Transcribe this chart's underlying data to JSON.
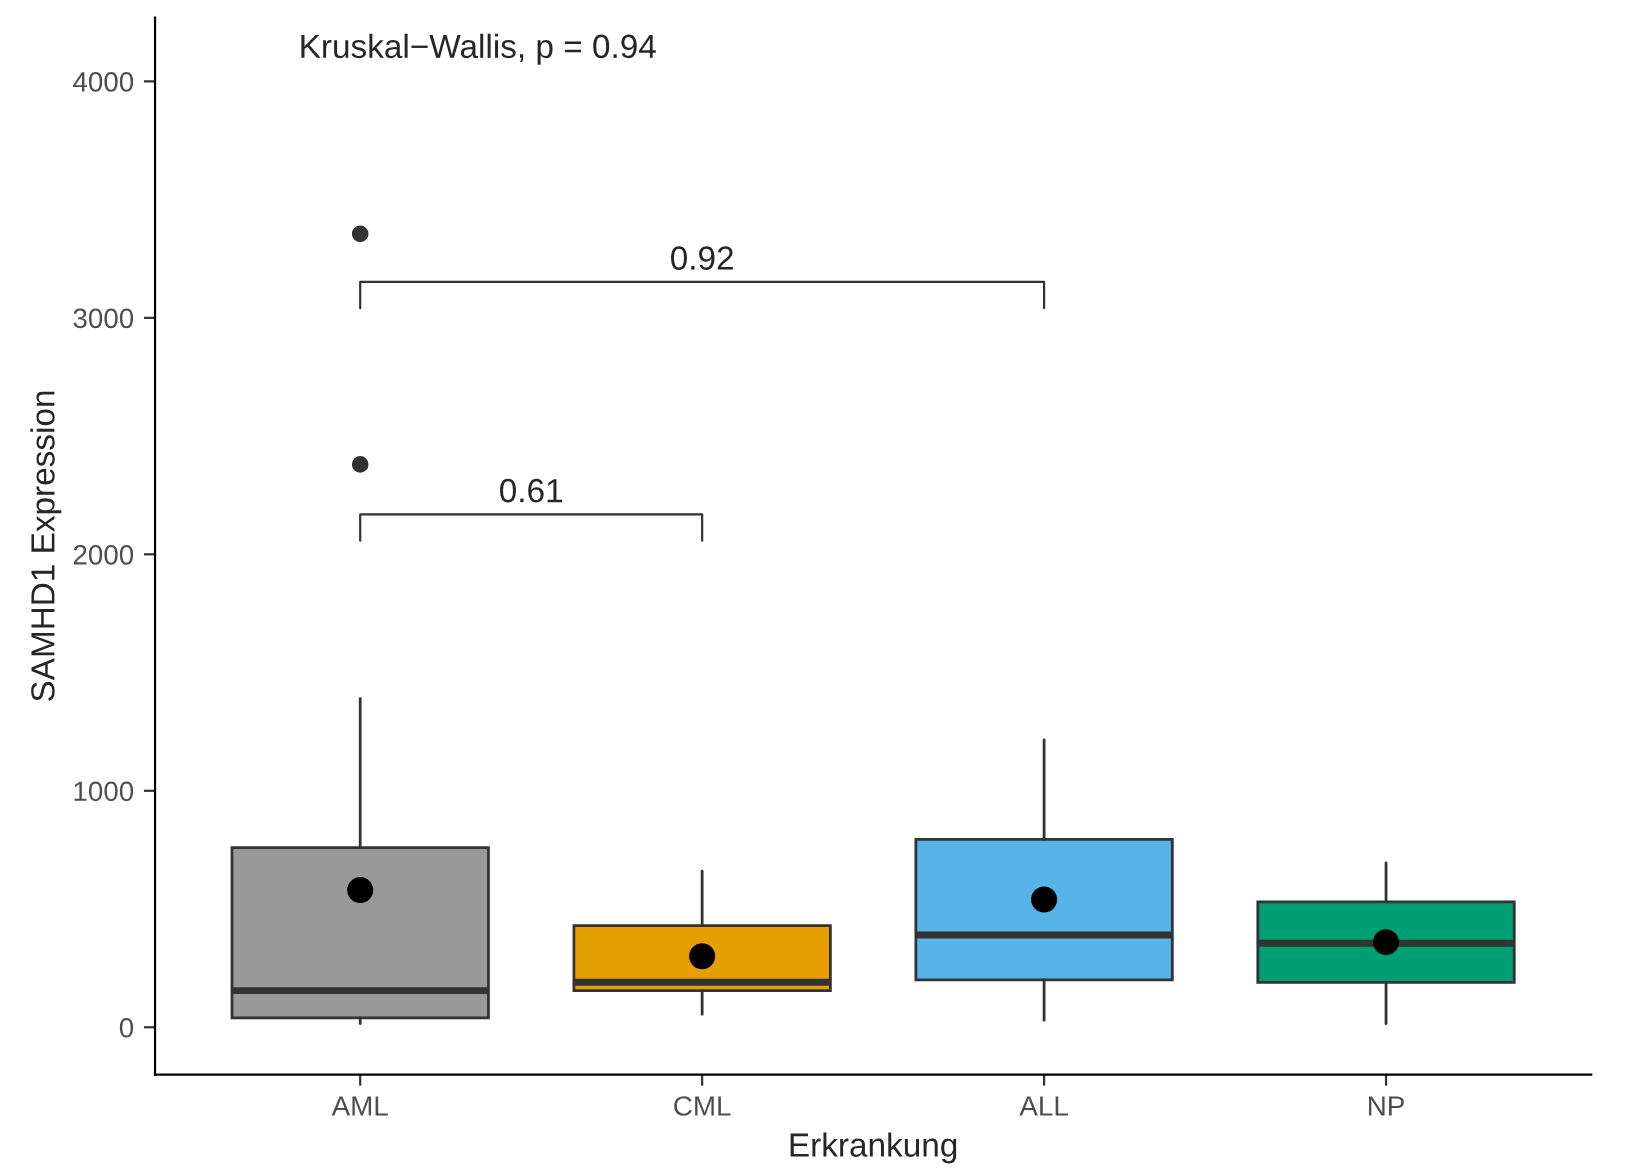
{
  "chart_data": {
    "type": "box",
    "xlabel": "Erkrankung",
    "ylabel": "SAMHD1 Expression",
    "categories": [
      "AML",
      "CML",
      "ALL",
      "NP"
    ],
    "colors": [
      "#999999",
      "#e69f00",
      "#56b4e9",
      "#009e73"
    ],
    "boxes": [
      {
        "low": 15,
        "q1": 40,
        "median": 155,
        "q3": 760,
        "high": 1390,
        "outliers": [
          2380,
          3355
        ]
      },
      {
        "low": 55,
        "q1": 155,
        "median": 190,
        "q3": 430,
        "high": 660
      },
      {
        "low": 30,
        "q1": 200,
        "median": 390,
        "q3": 795,
        "high": 1215
      },
      {
        "low": 15,
        "q1": 190,
        "median": 355,
        "q3": 530,
        "high": 695
      }
    ],
    "series": [
      {
        "type": "scatter",
        "color": "#000000",
        "x": [
          "AML",
          "CML",
          "ALL",
          "NP"
        ],
        "values": [
          580,
          300,
          540,
          360
        ]
      }
    ],
    "ylim": [
      -200,
      4270
    ],
    "yticks": [
      0,
      1000,
      2000,
      3000,
      4000
    ],
    "grid": false,
    "legend": false,
    "annotations": [
      "Kruskal−Wallis, p = 0.94",
      "0.61",
      "0.92"
    ]
  }
}
